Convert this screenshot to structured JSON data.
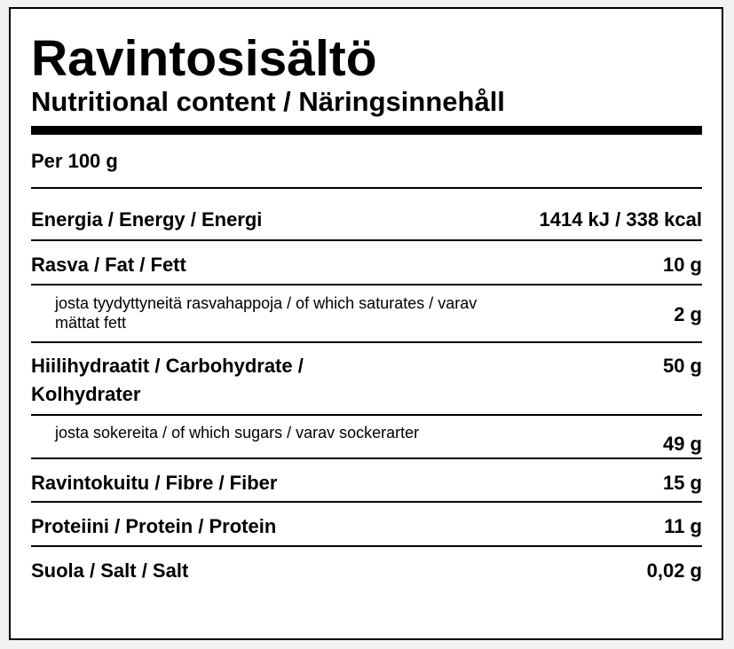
{
  "header": {
    "title": "Ravintosisältö",
    "subtitle": "Nutritional content / Näringsinnehåll"
  },
  "per": "Per 100 g",
  "rows": [
    {
      "label": "Energia / Energy / Energi",
      "value": "1414 kJ / 338 kcal",
      "sub": false
    },
    {
      "label": "Rasva / Fat / Fett",
      "value": "10 g",
      "sub": false
    },
    {
      "label": "josta tyydyttyneitä rasvahappoja / of which saturates / varav mättat fett",
      "value": "2 g",
      "sub": true
    },
    {
      "label": "Hiilihydraatit / Carbohydrate / Kolhydrater",
      "value": "50 g",
      "sub": false
    },
    {
      "label": "josta sokereita / of which sugars / varav sockerarter",
      "value": "49 g",
      "sub": true
    },
    {
      "label": "Ravintokuitu / Fibre / Fiber",
      "value": "15 g",
      "sub": false
    },
    {
      "label": "Proteiini / Protein / Protein",
      "value": "11 g",
      "sub": false
    },
    {
      "label": "Suola / Salt / Salt",
      "value": "0,02 g",
      "sub": false
    }
  ]
}
